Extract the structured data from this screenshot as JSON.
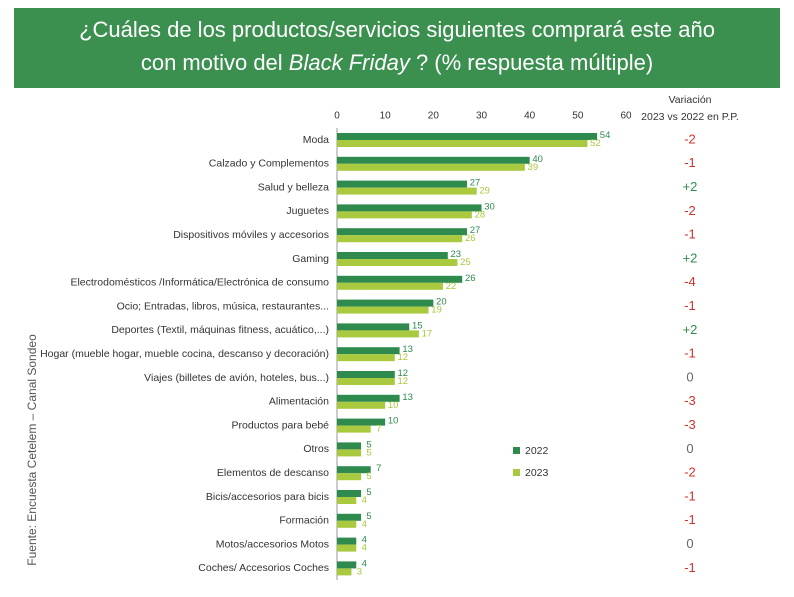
{
  "chart_data": {
    "type": "bar",
    "orientation": "horizontal",
    "title": [
      "¿Cuáles de los productos/servicios siguientes comprará este año",
      "con motivo del ",
      "Black Friday",
      " ? (% respuesta múltiple)"
    ],
    "title_color": "#3b8f4f",
    "source": "Fuente: Encuesta Cetelem – Canal Sondeo",
    "categories": [
      "Moda",
      "Calzado y Complementos",
      "Salud y belleza",
      "Juguetes",
      "Dispositivos móviles y accesorios",
      "Gaming",
      "Electrodomésticos /Informática/Electrónica de consumo",
      "Ocio; Entradas, libros, música, restaurantes...",
      "Deportes (Textil, máquinas fitness, acuático,...)",
      "Hogar (mueble hogar, mueble cocina, descanso y decoración)",
      "Viajes (billetes de avión, hoteles, bus...)",
      "Alimentación",
      "Productos para bebé",
      "Otros",
      "Elementos de descanso",
      "Bicis/accesorios para bicis",
      "Formación",
      "Motos/accesorios Motos",
      "Coches/ Accesorios Coches"
    ],
    "series": [
      {
        "name": "2022",
        "color": "#2f8a4e",
        "values": [
          54,
          40,
          27,
          30,
          27,
          23,
          26,
          20,
          15,
          13,
          12,
          13,
          10,
          5,
          7,
          5,
          5,
          4,
          4
        ]
      },
      {
        "name": "2023",
        "color": "#a9c93e",
        "values": [
          52,
          39,
          29,
          28,
          26,
          25,
          22,
          19,
          17,
          12,
          12,
          10,
          7,
          5,
          5,
          4,
          4,
          4,
          3
        ]
      }
    ],
    "xlim": [
      0,
      60
    ],
    "xticks": [
      0,
      10,
      20,
      30,
      40,
      50,
      60
    ],
    "variation": {
      "title": [
        "Variación",
        "2023 vs 2022 en P.P."
      ],
      "values": [
        -2,
        -1,
        2,
        -2,
        -1,
        2,
        -4,
        -1,
        2,
        -1,
        0,
        -3,
        -3,
        0,
        -2,
        -1,
        -1,
        0,
        -1
      ],
      "value_labels": [
        "-2",
        "-1",
        "+2",
        "-2",
        "-1",
        "+2",
        "-4",
        "-1",
        "+2",
        "-1",
        "0",
        "-3",
        "-3",
        "0",
        "-2",
        "-1",
        "-1",
        "0",
        "-1"
      ]
    }
  }
}
